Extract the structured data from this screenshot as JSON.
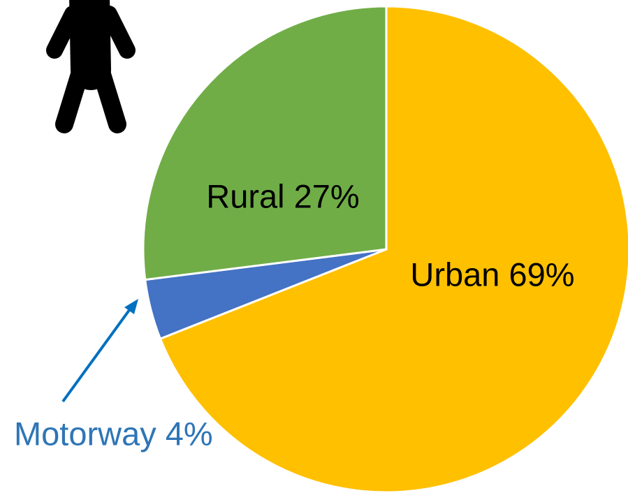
{
  "chart_data": {
    "type": "pie",
    "values": [
      69,
      4,
      27
    ],
    "value_labels": [
      "Urban 69%",
      "Motorway 4%",
      "Rural 27%"
    ],
    "colors": [
      "#ffc000",
      "#4472c4",
      "#70ad47"
    ]
  }
}
